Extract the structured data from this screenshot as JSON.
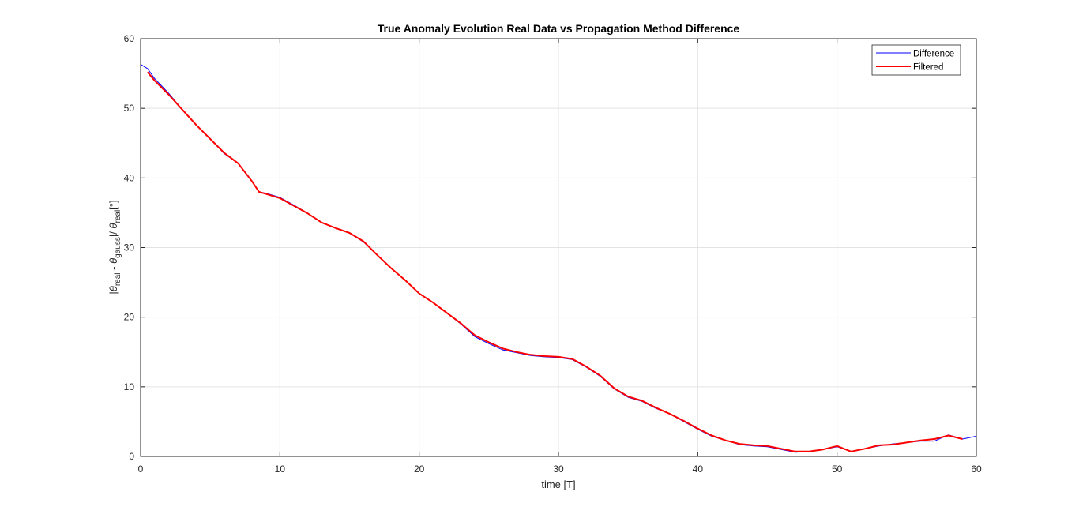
{
  "chart_data": {
    "type": "line",
    "title": "True Anomaly Evolution Real Data vs Propagation Method Difference",
    "xlabel": "time [T]",
    "ylabel": {
      "bar1": "|",
      "theta1": "θ",
      "sub1": "real",
      "minus": " - ",
      "theta2": "θ",
      "sub2": "gauss",
      "bar2": "|/ ",
      "theta3": "θ",
      "sub3": "real",
      "unit": "[°]"
    },
    "xlim": [
      0,
      60
    ],
    "ylim": [
      0,
      60
    ],
    "xticks": [
      "0",
      "10",
      "20",
      "30",
      "40",
      "50",
      "60"
    ],
    "yticks": [
      "0",
      "10",
      "20",
      "30",
      "40",
      "50",
      "60"
    ],
    "grid": true,
    "legend_position": "top-right",
    "series": [
      {
        "name": "Difference",
        "color": "#0000ff",
        "x": [
          0,
          0.5,
          1,
          2,
          3,
          4,
          5,
          6,
          7,
          8,
          8.5,
          9,
          10,
          11,
          12,
          13,
          14,
          15,
          16,
          17,
          18,
          19,
          20,
          21,
          22,
          23,
          24,
          25,
          26,
          27,
          28,
          29,
          30,
          31,
          32,
          33,
          34,
          35,
          36,
          37,
          38,
          39,
          40,
          41,
          42,
          43,
          44,
          45,
          46,
          47,
          48,
          49,
          50,
          51,
          52,
          53,
          54,
          55,
          56,
          57,
          58,
          59,
          60
        ],
        "y": [
          56.3,
          55.7,
          54.3,
          52.2,
          49.8,
          47.6,
          45.6,
          43.5,
          42.1,
          39.5,
          38.0,
          37.8,
          37.2,
          36.1,
          34.9,
          33.6,
          32.8,
          32.1,
          30.8,
          28.9,
          27.0,
          25.3,
          23.4,
          22.1,
          20.6,
          19.0,
          17.2,
          16.2,
          15.3,
          14.9,
          14.5,
          14.3,
          14.2,
          13.9,
          12.8,
          11.5,
          9.7,
          8.5,
          7.9,
          6.9,
          6.1,
          5.0,
          3.9,
          2.9,
          2.3,
          1.7,
          1.5,
          1.4,
          1.0,
          0.6,
          0.7,
          1.0,
          1.4,
          0.7,
          1.1,
          1.5,
          1.8,
          2.0,
          2.2,
          2.2,
          3.1,
          2.5,
          2.9
        ]
      },
      {
        "name": "Filtered",
        "color": "#ff0000",
        "x": [
          0.5,
          1,
          2,
          3,
          4,
          5,
          6,
          7,
          8,
          8.5,
          9,
          10,
          11,
          12,
          13,
          14,
          15,
          16,
          17,
          18,
          19,
          20,
          21,
          22,
          23,
          24,
          25,
          26,
          27,
          28,
          29,
          30,
          31,
          32,
          33,
          34,
          35,
          36,
          37,
          38,
          39,
          40,
          41,
          42,
          43,
          44,
          45,
          46,
          47,
          48,
          49,
          50,
          51,
          52,
          53,
          54,
          55,
          56,
          57,
          58,
          59
        ],
        "y": [
          55.2,
          54.0,
          52.0,
          49.8,
          47.6,
          45.6,
          43.6,
          42.1,
          39.5,
          38.0,
          37.7,
          37.1,
          36.0,
          34.9,
          33.6,
          32.8,
          32.1,
          30.9,
          28.9,
          27.0,
          25.3,
          23.4,
          22.1,
          20.6,
          19.1,
          17.4,
          16.4,
          15.5,
          15.0,
          14.6,
          14.4,
          14.3,
          14.0,
          12.9,
          11.6,
          9.8,
          8.6,
          8.0,
          7.0,
          6.1,
          5.1,
          4.0,
          3.0,
          2.3,
          1.8,
          1.6,
          1.5,
          1.1,
          0.7,
          0.7,
          1.0,
          1.5,
          0.7,
          1.1,
          1.6,
          1.7,
          2.0,
          2.3,
          2.5,
          3.0,
          2.5
        ]
      }
    ]
  }
}
